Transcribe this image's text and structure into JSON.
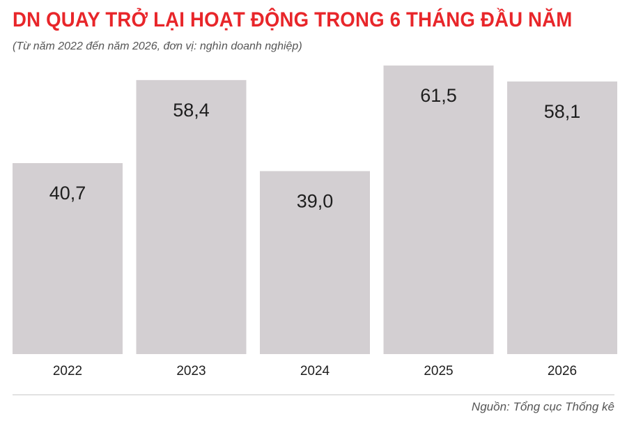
{
  "colors": {
    "title": "#e8262a",
    "bar": "#d3cfd2",
    "text": "#1e1e1e",
    "muted": "#555555"
  },
  "chart_data": {
    "type": "bar",
    "title": "DN QUAY TRỞ LẠI HOẠT ĐỘNG TRONG 6 THÁNG ĐẦU NĂM",
    "subtitle": "(Từ năm 2022 đến năm 2026, đơn vị: nghìn doanh nghiệp)",
    "categories": [
      "2022",
      "2023",
      "2024",
      "2025",
      "2026"
    ],
    "values": [
      40.7,
      58.4,
      39.0,
      61.5,
      58.1
    ],
    "value_labels": [
      "40,7",
      "58,4",
      "39,0",
      "61,5",
      "58,1"
    ],
    "xlabel": "",
    "ylabel": "",
    "ylim": [
      0,
      61.5
    ],
    "grid": false,
    "legend": "none",
    "source": "Nguồn: Tổng cục Thống kê"
  }
}
